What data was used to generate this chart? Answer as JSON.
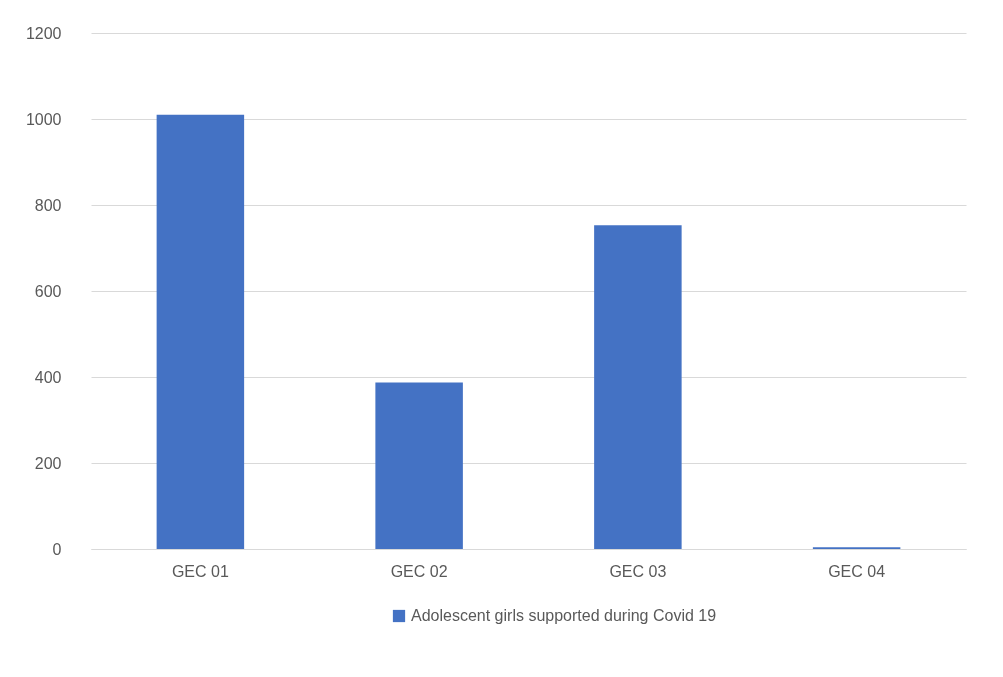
{
  "chart_data": {
    "type": "bar",
    "categories": [
      "GEC 01",
      "GEC 02",
      "GEC 03",
      "GEC 04"
    ],
    "series": [
      {
        "name": "Adolescent girls supported during Covid 19",
        "color": "#4472c4",
        "values": [
          1010,
          387,
          753,
          4
        ]
      }
    ],
    "ylim": [
      0,
      1200
    ],
    "yticks": [
      0,
      200,
      400,
      600,
      800,
      1000,
      1200
    ],
    "grid": "y",
    "legend": "bottom"
  }
}
